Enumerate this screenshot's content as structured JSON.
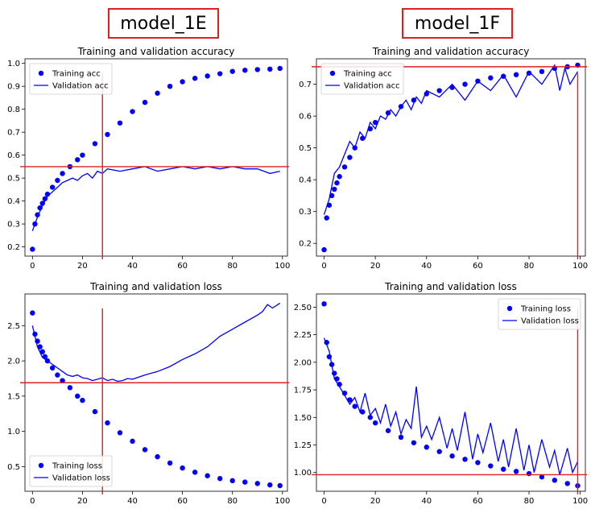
{
  "models": [
    {
      "label": "model_1E"
    },
    {
      "label": "model_1F"
    }
  ],
  "chart_data": [
    {
      "type": "scatter",
      "model": "model_1E",
      "title": "Training and validation accuracy",
      "xlabel": "",
      "ylabel": "",
      "xlim": [
        -3,
        102
      ],
      "ylim": [
        0.16,
        1.02
      ],
      "xticks": [
        0,
        20,
        40,
        60,
        80,
        100
      ],
      "yticks": [
        0.2,
        0.3,
        0.4,
        0.5,
        0.6,
        0.7,
        0.8,
        0.9,
        1.0
      ],
      "tick_labels_y": [
        "0.2",
        "0.3",
        "0.4",
        "0.5",
        "0.6",
        "0.7",
        "0.8",
        "0.9",
        "1.0"
      ],
      "legend_position": "upper-left",
      "train_color": "#0000ff",
      "series": [
        {
          "name": "Training acc",
          "style": "dots",
          "kind": "train_acc",
          "x": [
            0,
            1,
            2,
            3,
            4,
            5,
            6,
            8,
            10,
            12,
            15,
            18,
            20,
            25,
            30,
            35,
            40,
            45,
            50,
            55,
            60,
            65,
            70,
            75,
            80,
            85,
            90,
            95,
            99
          ],
          "y": [
            0.19,
            0.3,
            0.34,
            0.37,
            0.39,
            0.41,
            0.43,
            0.46,
            0.49,
            0.52,
            0.55,
            0.58,
            0.6,
            0.65,
            0.69,
            0.74,
            0.79,
            0.83,
            0.87,
            0.9,
            0.92,
            0.935,
            0.945,
            0.955,
            0.965,
            0.97,
            0.973,
            0.975,
            0.978
          ]
        },
        {
          "name": "Validation acc",
          "style": "line",
          "kind": "val_acc",
          "x": [
            0,
            2,
            4,
            6,
            8,
            10,
            12,
            14,
            16,
            18,
            20,
            22,
            24,
            26,
            28,
            30,
            35,
            40,
            45,
            50,
            55,
            60,
            65,
            70,
            75,
            80,
            85,
            90,
            95,
            99
          ],
          "y": [
            0.27,
            0.33,
            0.38,
            0.42,
            0.44,
            0.46,
            0.48,
            0.49,
            0.5,
            0.49,
            0.51,
            0.52,
            0.5,
            0.53,
            0.52,
            0.54,
            0.53,
            0.54,
            0.55,
            0.53,
            0.54,
            0.55,
            0.54,
            0.55,
            0.54,
            0.55,
            0.54,
            0.54,
            0.52,
            0.53
          ]
        }
      ],
      "hline": 0.55,
      "vline": 28
    },
    {
      "type": "scatter",
      "model": "model_1F",
      "title": "Training and validation accuracy",
      "xlabel": "",
      "ylabel": "",
      "xlim": [
        -3,
        102
      ],
      "ylim": [
        0.16,
        0.78
      ],
      "xticks": [
        0,
        20,
        40,
        60,
        80,
        100
      ],
      "yticks": [
        0.2,
        0.3,
        0.4,
        0.5,
        0.6,
        0.7
      ],
      "tick_labels_y": [
        "0.2",
        "0.3",
        "0.4",
        "0.5",
        "0.6",
        "0.7"
      ],
      "legend_position": "upper-left",
      "series": [
        {
          "name": "Training acc",
          "style": "dots",
          "kind": "train_acc",
          "x": [
            0,
            1,
            2,
            3,
            4,
            5,
            6,
            8,
            10,
            12,
            15,
            18,
            20,
            25,
            30,
            35,
            40,
            45,
            50,
            55,
            60,
            65,
            70,
            75,
            80,
            85,
            90,
            95,
            99
          ],
          "y": [
            0.18,
            0.28,
            0.32,
            0.35,
            0.37,
            0.39,
            0.41,
            0.44,
            0.47,
            0.5,
            0.53,
            0.56,
            0.58,
            0.61,
            0.63,
            0.65,
            0.67,
            0.68,
            0.69,
            0.7,
            0.71,
            0.72,
            0.725,
            0.73,
            0.735,
            0.74,
            0.75,
            0.755,
            0.76
          ]
        },
        {
          "name": "Validation acc",
          "style": "line",
          "kind": "val_acc",
          "x": [
            0,
            2,
            4,
            6,
            8,
            10,
            12,
            14,
            16,
            18,
            20,
            22,
            24,
            26,
            28,
            30,
            32,
            34,
            36,
            38,
            40,
            45,
            50,
            55,
            60,
            65,
            70,
            75,
            80,
            85,
            90,
            92,
            94,
            96,
            99
          ],
          "y": [
            0.29,
            0.34,
            0.42,
            0.44,
            0.48,
            0.52,
            0.5,
            0.55,
            0.53,
            0.58,
            0.56,
            0.6,
            0.59,
            0.62,
            0.6,
            0.63,
            0.65,
            0.62,
            0.66,
            0.64,
            0.68,
            0.66,
            0.7,
            0.65,
            0.71,
            0.68,
            0.73,
            0.66,
            0.74,
            0.7,
            0.76,
            0.68,
            0.75,
            0.7,
            0.74
          ]
        }
      ],
      "hline": 0.755,
      "vline": 99
    },
    {
      "type": "scatter",
      "model": "model_1E",
      "title": "Training and validation loss",
      "xlabel": "",
      "ylabel": "",
      "xlim": [
        -3,
        102
      ],
      "ylim": [
        0.15,
        2.95
      ],
      "xticks": [
        0,
        20,
        40,
        60,
        80,
        100
      ],
      "yticks": [
        0.5,
        1.0,
        1.5,
        2.0,
        2.5
      ],
      "tick_labels_y": [
        "0.5",
        "1.0",
        "1.5",
        "2.0",
        "2.5"
      ],
      "legend_position": "lower-left",
      "series": [
        {
          "name": "Training loss",
          "style": "dots",
          "kind": "train_loss",
          "x": [
            0,
            1,
            2,
            3,
            4,
            5,
            6,
            8,
            10,
            12,
            15,
            18,
            20,
            25,
            30,
            35,
            40,
            45,
            50,
            55,
            60,
            65,
            70,
            75,
            80,
            85,
            90,
            95,
            99
          ],
          "y": [
            2.68,
            2.38,
            2.28,
            2.2,
            2.13,
            2.06,
            2.0,
            1.9,
            1.8,
            1.72,
            1.62,
            1.5,
            1.44,
            1.28,
            1.12,
            0.98,
            0.86,
            0.74,
            0.64,
            0.55,
            0.48,
            0.42,
            0.37,
            0.33,
            0.3,
            0.28,
            0.26,
            0.24,
            0.23
          ]
        },
        {
          "name": "Validation loss",
          "style": "line",
          "kind": "val_loss",
          "x": [
            0,
            2,
            4,
            6,
            8,
            10,
            12,
            14,
            16,
            18,
            20,
            22,
            24,
            26,
            28,
            30,
            32,
            34,
            36,
            38,
            40,
            45,
            50,
            55,
            60,
            65,
            70,
            75,
            80,
            85,
            90,
            92,
            94,
            96,
            99
          ],
          "y": [
            2.5,
            2.2,
            2.05,
            2.0,
            1.95,
            1.9,
            1.85,
            1.8,
            1.78,
            1.8,
            1.76,
            1.75,
            1.72,
            1.74,
            1.76,
            1.72,
            1.74,
            1.71,
            1.72,
            1.75,
            1.74,
            1.8,
            1.85,
            1.92,
            2.02,
            2.1,
            2.2,
            2.35,
            2.45,
            2.55,
            2.65,
            2.7,
            2.8,
            2.75,
            2.82
          ]
        }
      ],
      "hline": 1.69,
      "vline": 28
    },
    {
      "type": "scatter",
      "model": "model_1F",
      "title": "Training and validation loss",
      "xlabel": "",
      "ylabel": "",
      "xlim": [
        -3,
        102
      ],
      "ylim": [
        0.83,
        2.62
      ],
      "xticks": [
        0,
        20,
        40,
        60,
        80,
        100
      ],
      "yticks": [
        1.0,
        1.25,
        1.5,
        1.75,
        2.0,
        2.25,
        2.5
      ],
      "tick_labels_y": [
        "1.00",
        "1.25",
        "1.50",
        "1.75",
        "2.00",
        "2.25",
        "2.50"
      ],
      "legend_position": "upper-right",
      "series": [
        {
          "name": "Training loss",
          "style": "dots",
          "kind": "train_loss",
          "x": [
            0,
            1,
            2,
            3,
            4,
            5,
            6,
            8,
            10,
            12,
            15,
            18,
            20,
            25,
            30,
            35,
            40,
            45,
            50,
            55,
            60,
            65,
            70,
            75,
            80,
            85,
            90,
            95,
            99
          ],
          "y": [
            2.53,
            2.18,
            2.05,
            1.98,
            1.9,
            1.85,
            1.8,
            1.72,
            1.66,
            1.6,
            1.55,
            1.5,
            1.45,
            1.38,
            1.32,
            1.27,
            1.23,
            1.19,
            1.15,
            1.12,
            1.09,
            1.06,
            1.03,
            1.01,
            0.99,
            0.96,
            0.93,
            0.9,
            0.88
          ]
        },
        {
          "name": "Validation loss",
          "style": "line",
          "kind": "val_loss",
          "x": [
            0,
            2,
            4,
            6,
            8,
            10,
            12,
            14,
            16,
            18,
            20,
            22,
            24,
            26,
            28,
            30,
            32,
            34,
            36,
            38,
            40,
            42,
            45,
            48,
            50,
            52,
            55,
            58,
            60,
            62,
            65,
            68,
            70,
            72,
            75,
            78,
            80,
            82,
            85,
            88,
            90,
            92,
            95,
            97,
            99
          ],
          "y": [
            2.22,
            2.1,
            1.85,
            1.78,
            1.7,
            1.62,
            1.68,
            1.55,
            1.72,
            1.52,
            1.58,
            1.45,
            1.62,
            1.42,
            1.55,
            1.35,
            1.48,
            1.4,
            1.78,
            1.32,
            1.42,
            1.3,
            1.5,
            1.22,
            1.4,
            1.2,
            1.55,
            1.12,
            1.35,
            1.18,
            1.45,
            1.1,
            1.3,
            1.05,
            1.4,
            1.02,
            1.25,
            1.0,
            1.3,
            1.05,
            1.2,
            0.98,
            1.22,
            1.0,
            1.1
          ]
        }
      ],
      "hline": 0.98,
      "vline": 99
    }
  ]
}
